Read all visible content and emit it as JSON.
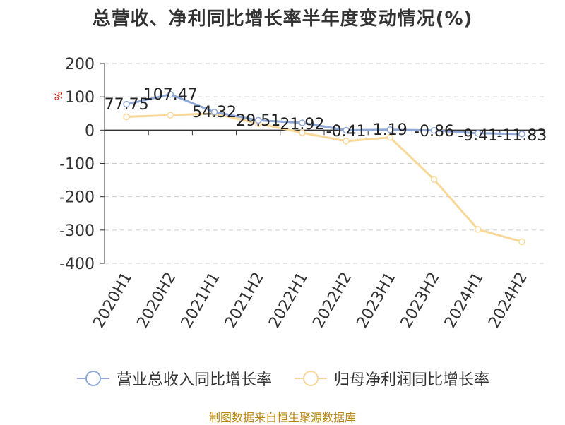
{
  "chart_data": {
    "type": "line",
    "title": "总营收、净利同比增长率半年度变动情况(%)",
    "ylabel": "%",
    "categories": [
      "2020H1",
      "2020H2",
      "2021H1",
      "2021H2",
      "2022H1",
      "2022H2",
      "2023H1",
      "2023H2",
      "2024H1",
      "2024H2"
    ],
    "ylim": [
      -400,
      200
    ],
    "yticks": [
      200,
      100,
      0,
      -100,
      -200,
      -300,
      -400
    ],
    "grid": true,
    "legend_position": "bottom",
    "series": [
      {
        "name": "营业总收入同比增长率",
        "color": "#8fa8d8",
        "values": [
          77.75,
          107.47,
          54.32,
          29.51,
          21.92,
          -0.41,
          1.19,
          -0.86,
          -9.41,
          -11.83
        ],
        "labels": [
          "77.75",
          "107.47",
          "54.32",
          "29.51",
          "21.92",
          "-0.41",
          "1.19",
          "-0.86",
          "-9.41",
          "-11.83"
        ]
      },
      {
        "name": "归母净利润同比增长率",
        "color": "#f8d898",
        "values": [
          40,
          45,
          50,
          20,
          -8,
          -33,
          -22,
          -148,
          -298,
          -335
        ]
      }
    ]
  },
  "source": "制图数据来自恒生聚源数据库"
}
